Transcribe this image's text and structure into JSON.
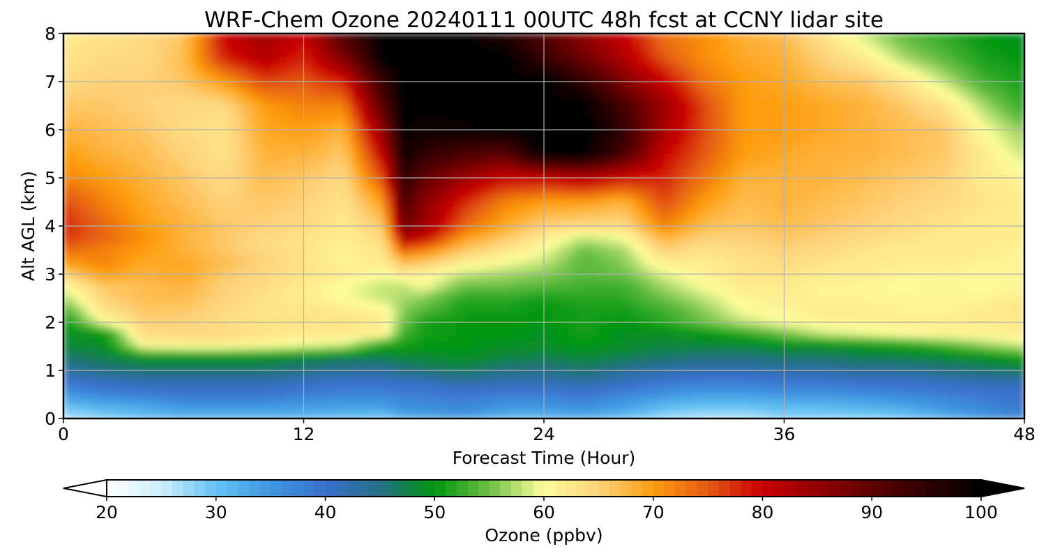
{
  "chart_data": {
    "type": "heatmap",
    "title": "WRF-Chem Ozone  20240111 00UTC 48h fcst at CCNY lidar site",
    "xlabel": "Forecast Time (Hour)",
    "ylabel": "Alt AGL (km)",
    "xlim": [
      0,
      48
    ],
    "ylim": [
      0,
      8
    ],
    "x_ticks": [
      0,
      12,
      24,
      36,
      48
    ],
    "y_ticks": [
      0,
      1,
      2,
      3,
      4,
      5,
      6,
      7,
      8
    ],
    "grid": true,
    "x_hours": [
      0,
      2,
      4,
      6,
      8,
      10,
      12,
      14,
      16,
      17,
      18,
      20,
      22,
      24,
      26,
      28,
      30,
      32,
      34,
      36,
      38,
      40,
      42,
      44,
      46,
      48
    ],
    "alt_km": [
      0,
      0.25,
      0.5,
      0.75,
      1,
      1.25,
      1.5,
      1.75,
      2,
      2.25,
      2.5,
      2.75,
      3,
      3.25,
      3.5,
      3.75,
      4,
      4.5,
      5,
      5.5,
      6,
      6.5,
      7,
      7.5,
      8
    ],
    "ozone_ppbv": [
      [
        26,
        28,
        30,
        31,
        31,
        31,
        31,
        30,
        29,
        32,
        33,
        34,
        31,
        31,
        32,
        30,
        27,
        26,
        26,
        28,
        28,
        28,
        29,
        32,
        35,
        37
      ],
      [
        30,
        32,
        33,
        35,
        35,
        35,
        34,
        34,
        34,
        36,
        36,
        37,
        35,
        35,
        36,
        34,
        31,
        30,
        30,
        31,
        31,
        32,
        33,
        35,
        37,
        39
      ],
      [
        35,
        37,
        38,
        39,
        39,
        39,
        38,
        37,
        37,
        38,
        38,
        39,
        38,
        38,
        39,
        37,
        35,
        34,
        34,
        35,
        35,
        36,
        37,
        38,
        39,
        40
      ],
      [
        39,
        41,
        42,
        42,
        42,
        42,
        41,
        40,
        40,
        41,
        41,
        43,
        42,
        42,
        43,
        41,
        39,
        38,
        38,
        39,
        39,
        40,
        40,
        41,
        42,
        42
      ],
      [
        43,
        45,
        46,
        46,
        46,
        46,
        45,
        44,
        44,
        45,
        46,
        47,
        45,
        45,
        46,
        44,
        43,
        42,
        42,
        43,
        43,
        44,
        44,
        45,
        46,
        47
      ],
      [
        46,
        47,
        49,
        49,
        49,
        49,
        48,
        47,
        47,
        48,
        48,
        49,
        48,
        47,
        48,
        47,
        46,
        45,
        45,
        46,
        46,
        47,
        47,
        48,
        49,
        51
      ],
      [
        48,
        49,
        60,
        61,
        61,
        60,
        59,
        58,
        51,
        51,
        50,
        50,
        49,
        49,
        50,
        49,
        48,
        48,
        48,
        49,
        49,
        50,
        51,
        53,
        56,
        58
      ],
      [
        49,
        50,
        64,
        64,
        64,
        63,
        62,
        62,
        61,
        53,
        51,
        50,
        50,
        49,
        51,
        49,
        49,
        50,
        52,
        55,
        58,
        59,
        60,
        61,
        61,
        62
      ],
      [
        50,
        60,
        65,
        65,
        64,
        63,
        63,
        63,
        62,
        55,
        51,
        50,
        50,
        50,
        51,
        50,
        52,
        55,
        58,
        60,
        61,
        61,
        62,
        62,
        62,
        62
      ],
      [
        53,
        63,
        66,
        66,
        64,
        63,
        63,
        62,
        61,
        56,
        54,
        51,
        51,
        50,
        51,
        51,
        53,
        56,
        60,
        61,
        62,
        62,
        61,
        61,
        62,
        63
      ],
      [
        57,
        65,
        67,
        67,
        65,
        63,
        62,
        60,
        58,
        57,
        56,
        52,
        52,
        51,
        52,
        52,
        55,
        58,
        61,
        62,
        61,
        61,
        61,
        61,
        61,
        62
      ],
      [
        60,
        66,
        67,
        68,
        65,
        64,
        62,
        60,
        58,
        58,
        60,
        55,
        55,
        54,
        53,
        53,
        57,
        60,
        62,
        62,
        61,
        61,
        60,
        61,
        60,
        61
      ],
      [
        65,
        70,
        68,
        69,
        66,
        64,
        63,
        62,
        60,
        62,
        61,
        58,
        57,
        56,
        54,
        55,
        59,
        61,
        63,
        63,
        62,
        62,
        61,
        61,
        61,
        61
      ],
      [
        70,
        72,
        69,
        69,
        67,
        65,
        63,
        61,
        62,
        67,
        66,
        62,
        60,
        58,
        54,
        56,
        62,
        62,
        63,
        64,
        63,
        62,
        62,
        62,
        61,
        61
      ],
      [
        74,
        72,
        70,
        68,
        66,
        64,
        63,
        61,
        63,
        74,
        72,
        66,
        63,
        60,
        55,
        57,
        65,
        63,
        64,
        65,
        64,
        63,
        62,
        62,
        62,
        61
      ],
      [
        77,
        74,
        71,
        68,
        66,
        64,
        63,
        62,
        64,
        82,
        80,
        70,
        66,
        62,
        58,
        60,
        68,
        65,
        65,
        66,
        65,
        64,
        63,
        62,
        62,
        62
      ],
      [
        78,
        74,
        70,
        68,
        66,
        65,
        64,
        62,
        66,
        88,
        84,
        74,
        69,
        65,
        64,
        64,
        72,
        67,
        66,
        67,
        66,
        65,
        64,
        63,
        62,
        62
      ],
      [
        76,
        72,
        69,
        67,
        65,
        66,
        65,
        63,
        70,
        92,
        86,
        78,
        72,
        70,
        70,
        68,
        76,
        70,
        67,
        68,
        67,
        66,
        65,
        64,
        63,
        62
      ],
      [
        72,
        70,
        68,
        66,
        64,
        67,
        66,
        64,
        76,
        95,
        90,
        84,
        80,
        80,
        82,
        79,
        78,
        73,
        68,
        68,
        68,
        67,
        66,
        65,
        62,
        61
      ],
      [
        70,
        68,
        67,
        65,
        63,
        68,
        68,
        66,
        81,
        98,
        95,
        92,
        90,
        100,
        100,
        92,
        80,
        75,
        70,
        69,
        68,
        68,
        67,
        66,
        62,
        58
      ],
      [
        68,
        67,
        66,
        64,
        63,
        69,
        70,
        68,
        86,
        100,
        98,
        99,
        100,
        100,
        100,
        95,
        83,
        76,
        70,
        70,
        69,
        68,
        67,
        66,
        60,
        56
      ],
      [
        66,
        66,
        65,
        64,
        64,
        70,
        72,
        72,
        91,
        100,
        100,
        100,
        100,
        100,
        100,
        92,
        84,
        76,
        70,
        70,
        69,
        68,
        66,
        63,
        57,
        52
      ],
      [
        64,
        65,
        65,
        66,
        70,
        76,
        75,
        78,
        95,
        100,
        100,
        100,
        100,
        100,
        95,
        87,
        80,
        73,
        70,
        69,
        67,
        66,
        63,
        58,
        53,
        51
      ],
      [
        63,
        64,
        64,
        67,
        78,
        82,
        78,
        87,
        100,
        100,
        100,
        100,
        100,
        94,
        88,
        82,
        75,
        71,
        69,
        68,
        65,
        62,
        57,
        54,
        51,
        50
      ],
      [
        62,
        63,
        64,
        66,
        80,
        84,
        80,
        92,
        100,
        100,
        100,
        100,
        96,
        91,
        85,
        80,
        73,
        71,
        68,
        67,
        63,
        58,
        54,
        52,
        50,
        49
      ]
    ],
    "colorbar": {
      "label": "Ozone  (ppbv)",
      "min": 20,
      "max": 100,
      "step": 1,
      "ticks": [
        20,
        30,
        40,
        50,
        60,
        70,
        80,
        90,
        100
      ],
      "extend": "both",
      "orientation": "horizontal",
      "colors": [
        {
          "value": 20,
          "color": "#ffffff"
        },
        {
          "value": 25,
          "color": "#cdeefe"
        },
        {
          "value": 30,
          "color": "#64c2f4"
        },
        {
          "value": 35,
          "color": "#3f96df"
        },
        {
          "value": 40,
          "color": "#3a6fcd"
        },
        {
          "value": 45,
          "color": "#256f88"
        },
        {
          "value": 50,
          "color": "#00960f"
        },
        {
          "value": 55,
          "color": "#6dc047"
        },
        {
          "value": 60,
          "color": "#fefd9c"
        },
        {
          "value": 65,
          "color": "#fed27a"
        },
        {
          "value": 70,
          "color": "#fe9d10"
        },
        {
          "value": 75,
          "color": "#e45a12"
        },
        {
          "value": 80,
          "color": "#c80000"
        },
        {
          "value": 90,
          "color": "#5e0000"
        },
        {
          "value": 100,
          "color": "#000000"
        }
      ]
    }
  }
}
